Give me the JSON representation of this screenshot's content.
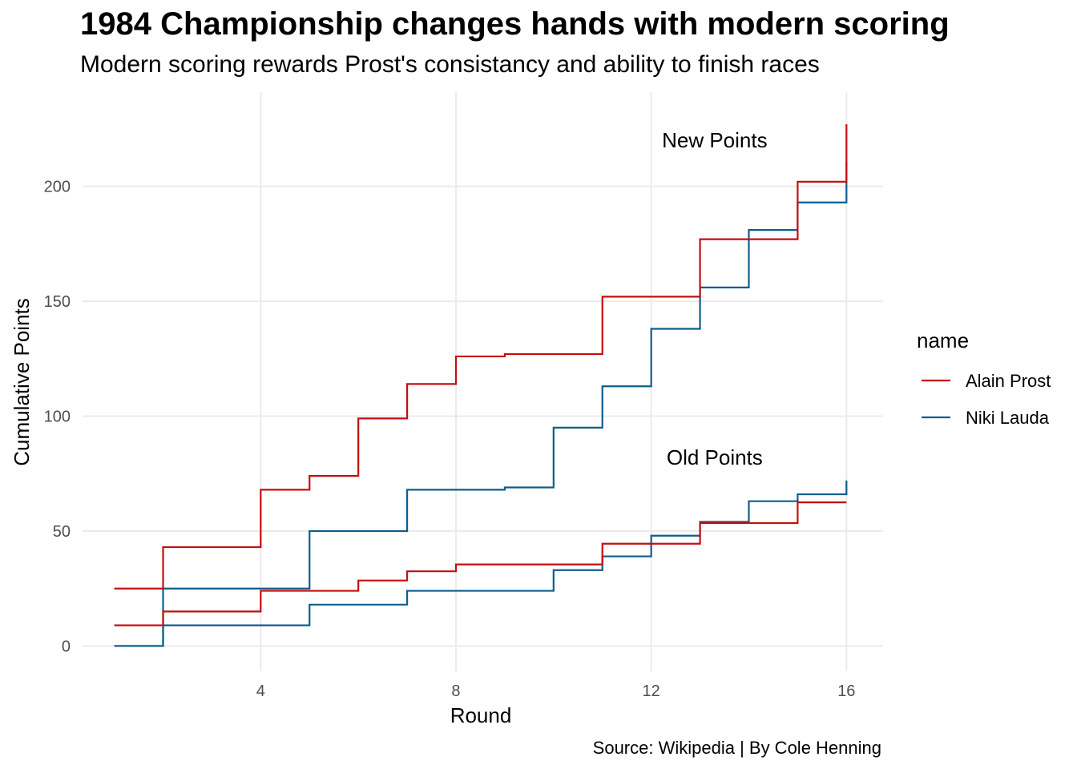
{
  "title": "1984 Championship changes hands with modern scoring",
  "subtitle": "Modern scoring rewards Prost's consistancy and ability to finish races",
  "caption": "Source: Wikipedia | By Cole Henning",
  "chart_data": {
    "type": "line",
    "step": true,
    "xlabel": "Round",
    "ylabel": "Cumulative Points",
    "xlim": [
      0.35,
      16.75
    ],
    "ylim": [
      -11,
      241
    ],
    "x_ticks": [
      4,
      8,
      12,
      16
    ],
    "y_ticks": [
      0,
      50,
      100,
      150,
      200
    ],
    "grid": true,
    "legend": {
      "title": "name",
      "position": "right"
    },
    "annotations": [
      {
        "text": "New Points",
        "x": 13.3,
        "y": 217
      },
      {
        "text": "Old Points",
        "x": 13.3,
        "y": 79
      }
    ],
    "colors": {
      "Alain Prost": "#c40f0f",
      "Niki Lauda": "#0d5e8c"
    },
    "x": [
      1,
      2,
      3,
      4,
      5,
      6,
      7,
      8,
      9,
      10,
      11,
      12,
      13,
      14,
      15,
      16
    ],
    "series": [
      {
        "name": "Alain Prost",
        "group": "New Points",
        "values": [
          25,
          43,
          43,
          68,
          74,
          99,
          114,
          126,
          127,
          127,
          152,
          152,
          177,
          177,
          202,
          227
        ]
      },
      {
        "name": "Niki Lauda",
        "group": "New Points",
        "values": [
          0,
          25,
          25,
          25,
          50,
          50,
          68,
          68,
          69,
          95,
          113,
          138,
          156,
          181,
          193,
          211
        ]
      },
      {
        "name": "Alain Prost",
        "group": "Old Points",
        "values": [
          9,
          15,
          15,
          24,
          24,
          28.5,
          32.5,
          35.5,
          35.5,
          35.5,
          44.5,
          44.5,
          53.5,
          53.5,
          62.5,
          62.5
        ]
      },
      {
        "name": "Niki Lauda",
        "group": "Old Points",
        "values": [
          0,
          9,
          9,
          9,
          18,
          18,
          24,
          24,
          24,
          33,
          39,
          48,
          54,
          63,
          66,
          72
        ]
      }
    ]
  }
}
